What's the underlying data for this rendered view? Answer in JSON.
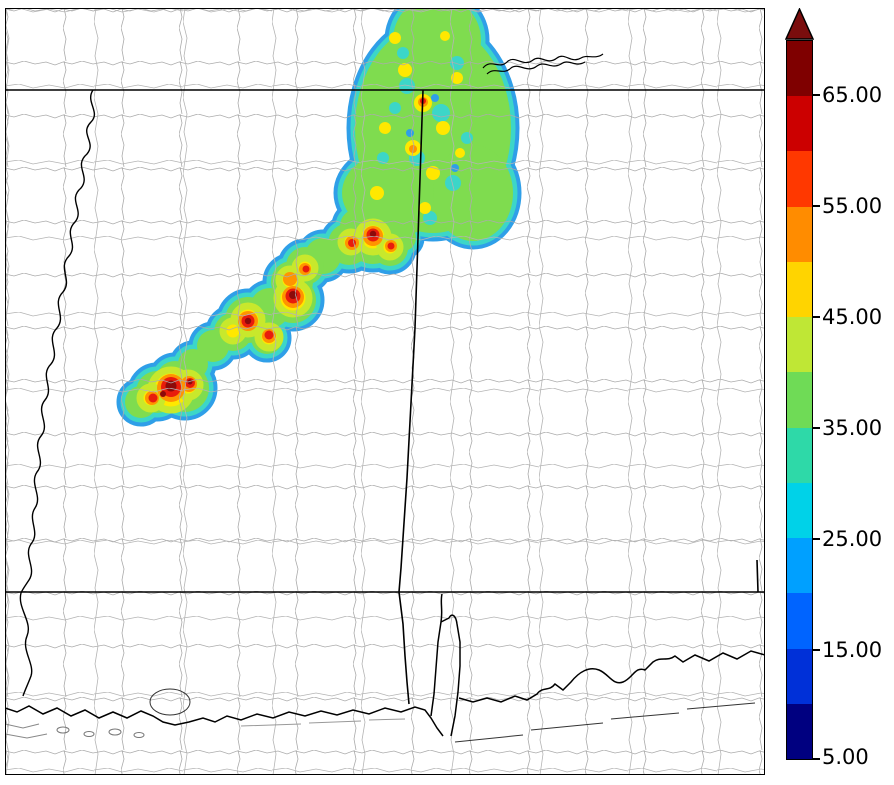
{
  "figure": {
    "kind": "radar-reflectivity-map",
    "visible_title": ""
  },
  "colorbar": {
    "ticks": [
      "65.00",
      "55.00",
      "45.00",
      "35.00",
      "25.00",
      "15.00",
      "5.00"
    ],
    "value_min": 5,
    "value_max": 70,
    "segment_colors": [
      "#7f0000",
      "#cc0000",
      "#ff3800",
      "#ff8c00",
      "#ffd400",
      "#bfe735",
      "#6fdb56",
      "#2ed9a8",
      "#00d2e8",
      "#00a0ff",
      "#0064ff",
      "#0030d8",
      "#000080"
    ],
    "arrow_color": "#7a0d0d",
    "position": "right"
  },
  "chart_data": {
    "type": "heatmap",
    "title": "",
    "legend_position": "right",
    "colorbar_tick_values": [
      65,
      55,
      45,
      35,
      25,
      15,
      5
    ],
    "value_range": [
      5,
      70
    ],
    "colormap_stops": [
      {
        "value": 5,
        "color": "#000080"
      },
      {
        "value": 15,
        "color": "#0050e8"
      },
      {
        "value": 25,
        "color": "#00b4f4"
      },
      {
        "value": 35,
        "color": "#48d98c"
      },
      {
        "value": 45,
        "color": "#ffdc00"
      },
      {
        "value": 55,
        "color": "#ff6200"
      },
      {
        "value": 65,
        "color": "#a60000"
      }
    ],
    "map_features": [
      "county-boundaries",
      "state-boundaries",
      "mississippi-river",
      "gulf-coastline",
      "barrier-islands"
    ],
    "swath_summary": "Diagonal band of high values running southwest-to-northeast from central Mississippi into north Alabama; embedded cores exceed 65 with broad 30-45 region in the northeast lobe."
  }
}
